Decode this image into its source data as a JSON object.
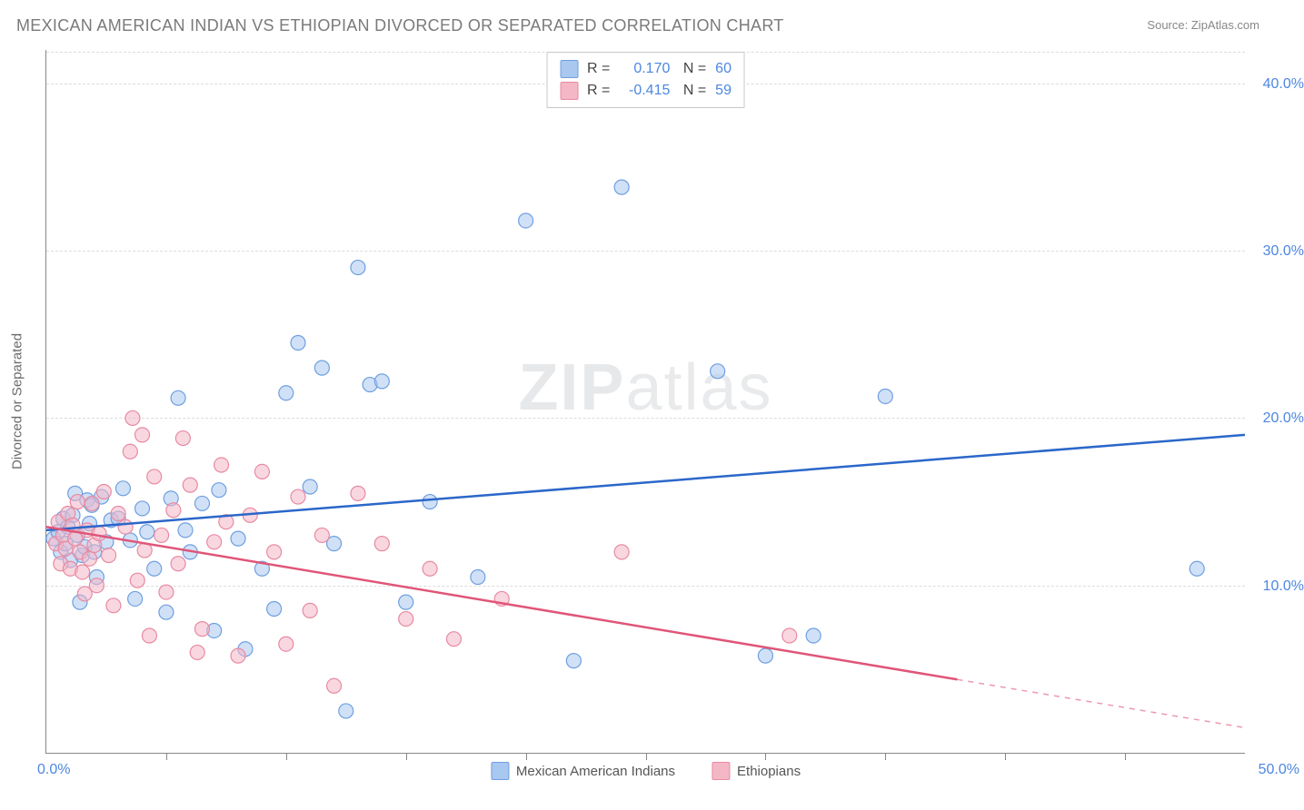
{
  "title": "MEXICAN AMERICAN INDIAN VS ETHIOPIAN DIVORCED OR SEPARATED CORRELATION CHART",
  "source_label": "Source:",
  "source_name": "ZipAtlas.com",
  "watermark_zip": "ZIP",
  "watermark_atlas": "atlas",
  "chart": {
    "type": "scatter",
    "yaxis_title": "Divorced or Separated",
    "background_color": "#ffffff",
    "grid_color": "#dcdcdc",
    "axis_color": "#888888",
    "xlim": [
      0,
      50
    ],
    "ylim": [
      0,
      42
    ],
    "xticks": [
      0,
      5,
      10,
      15,
      20,
      25,
      30,
      35,
      40,
      45,
      50
    ],
    "yticks": [
      10,
      20,
      30,
      40
    ],
    "xlabel_0": "0.0%",
    "xlabel_50": "50.0%",
    "ylabel_10": "10.0%",
    "ylabel_20": "20.0%",
    "ylabel_30": "30.0%",
    "ylabel_40": "40.0%",
    "marker_radius": 8,
    "marker_opacity": 0.55,
    "trend_line_width": 2.5,
    "series": [
      {
        "name": "Mexican American Indians",
        "fill_color": "#a9c8f0",
        "stroke_color": "#6f9fe0",
        "trend_color": "#2b67c9",
        "R": "0.170",
        "N": "60",
        "trend": {
          "x1": 0,
          "y1": 13.3,
          "x2": 50,
          "y2": 19.0
        },
        "trend_dashed_from_x": null,
        "points": [
          [
            0.3,
            12.8
          ],
          [
            0.5,
            13.2
          ],
          [
            0.6,
            12.0
          ],
          [
            0.7,
            14.0
          ],
          [
            0.8,
            12.5
          ],
          [
            0.9,
            13.5
          ],
          [
            1.0,
            11.5
          ],
          [
            1.1,
            14.2
          ],
          [
            1.2,
            15.5
          ],
          [
            1.3,
            13.0
          ],
          [
            1.4,
            9.0
          ],
          [
            1.5,
            11.8
          ],
          [
            1.6,
            12.3
          ],
          [
            1.7,
            15.1
          ],
          [
            1.8,
            13.7
          ],
          [
            1.9,
            14.8
          ],
          [
            2.0,
            12.0
          ],
          [
            2.1,
            10.5
          ],
          [
            2.3,
            15.3
          ],
          [
            2.5,
            12.6
          ],
          [
            2.7,
            13.9
          ],
          [
            3.0,
            14.0
          ],
          [
            3.2,
            15.8
          ],
          [
            3.5,
            12.7
          ],
          [
            3.7,
            9.2
          ],
          [
            4.0,
            14.6
          ],
          [
            4.2,
            13.2
          ],
          [
            4.5,
            11.0
          ],
          [
            5.0,
            8.4
          ],
          [
            5.2,
            15.2
          ],
          [
            5.5,
            21.2
          ],
          [
            5.8,
            13.3
          ],
          [
            6.0,
            12.0
          ],
          [
            6.5,
            14.9
          ],
          [
            7.0,
            7.3
          ],
          [
            7.2,
            15.7
          ],
          [
            8.0,
            12.8
          ],
          [
            8.3,
            6.2
          ],
          [
            9.0,
            11.0
          ],
          [
            9.5,
            8.6
          ],
          [
            10.0,
            21.5
          ],
          [
            10.5,
            24.5
          ],
          [
            11.0,
            15.9
          ],
          [
            11.5,
            23.0
          ],
          [
            12.0,
            12.5
          ],
          [
            12.5,
            2.5
          ],
          [
            13.0,
            29.0
          ],
          [
            13.5,
            22.0
          ],
          [
            14.0,
            22.2
          ],
          [
            15.0,
            9.0
          ],
          [
            16.0,
            15.0
          ],
          [
            18.0,
            10.5
          ],
          [
            20.0,
            31.8
          ],
          [
            22.0,
            5.5
          ],
          [
            24.0,
            33.8
          ],
          [
            28.0,
            22.8
          ],
          [
            30.0,
            5.8
          ],
          [
            35.0,
            21.3
          ],
          [
            32.0,
            7.0
          ],
          [
            48.0,
            11.0
          ]
        ]
      },
      {
        "name": "Ethiopians",
        "fill_color": "#f4b7c6",
        "stroke_color": "#e88aa2",
        "trend_color": "#e05578",
        "R": "-0.415",
        "N": "59",
        "trend": {
          "x1": 0,
          "y1": 13.5,
          "x2": 50,
          "y2": 1.5
        },
        "trend_dashed_from_x": 38,
        "points": [
          [
            0.4,
            12.5
          ],
          [
            0.5,
            13.8
          ],
          [
            0.6,
            11.3
          ],
          [
            0.7,
            13.0
          ],
          [
            0.8,
            12.2
          ],
          [
            0.9,
            14.3
          ],
          [
            1.0,
            11.0
          ],
          [
            1.1,
            13.6
          ],
          [
            1.2,
            12.8
          ],
          [
            1.3,
            15.0
          ],
          [
            1.4,
            12.0
          ],
          [
            1.5,
            10.8
          ],
          [
            1.6,
            9.5
          ],
          [
            1.7,
            13.3
          ],
          [
            1.8,
            11.6
          ],
          [
            1.9,
            14.9
          ],
          [
            2.0,
            12.4
          ],
          [
            2.1,
            10.0
          ],
          [
            2.2,
            13.1
          ],
          [
            2.4,
            15.6
          ],
          [
            2.6,
            11.8
          ],
          [
            2.8,
            8.8
          ],
          [
            3.0,
            14.3
          ],
          [
            3.3,
            13.5
          ],
          [
            3.5,
            18.0
          ],
          [
            3.6,
            20.0
          ],
          [
            3.8,
            10.3
          ],
          [
            4.0,
            19.0
          ],
          [
            4.1,
            12.1
          ],
          [
            4.3,
            7.0
          ],
          [
            4.5,
            16.5
          ],
          [
            4.8,
            13.0
          ],
          [
            5.0,
            9.6
          ],
          [
            5.3,
            14.5
          ],
          [
            5.5,
            11.3
          ],
          [
            5.7,
            18.8
          ],
          [
            6.0,
            16.0
          ],
          [
            6.3,
            6.0
          ],
          [
            6.5,
            7.4
          ],
          [
            7.0,
            12.6
          ],
          [
            7.3,
            17.2
          ],
          [
            7.5,
            13.8
          ],
          [
            8.0,
            5.8
          ],
          [
            8.5,
            14.2
          ],
          [
            9.0,
            16.8
          ],
          [
            9.5,
            12.0
          ],
          [
            10.0,
            6.5
          ],
          [
            10.5,
            15.3
          ],
          [
            11.0,
            8.5
          ],
          [
            11.5,
            13.0
          ],
          [
            12.0,
            4.0
          ],
          [
            13.0,
            15.5
          ],
          [
            14.0,
            12.5
          ],
          [
            15.0,
            8.0
          ],
          [
            16.0,
            11.0
          ],
          [
            17.0,
            6.8
          ],
          [
            19.0,
            9.2
          ],
          [
            24.0,
            12.0
          ],
          [
            31.0,
            7.0
          ]
        ]
      }
    ]
  },
  "legend_bottom": {
    "series1_label": "Mexican American Indians",
    "series2_label": "Ethiopians"
  }
}
